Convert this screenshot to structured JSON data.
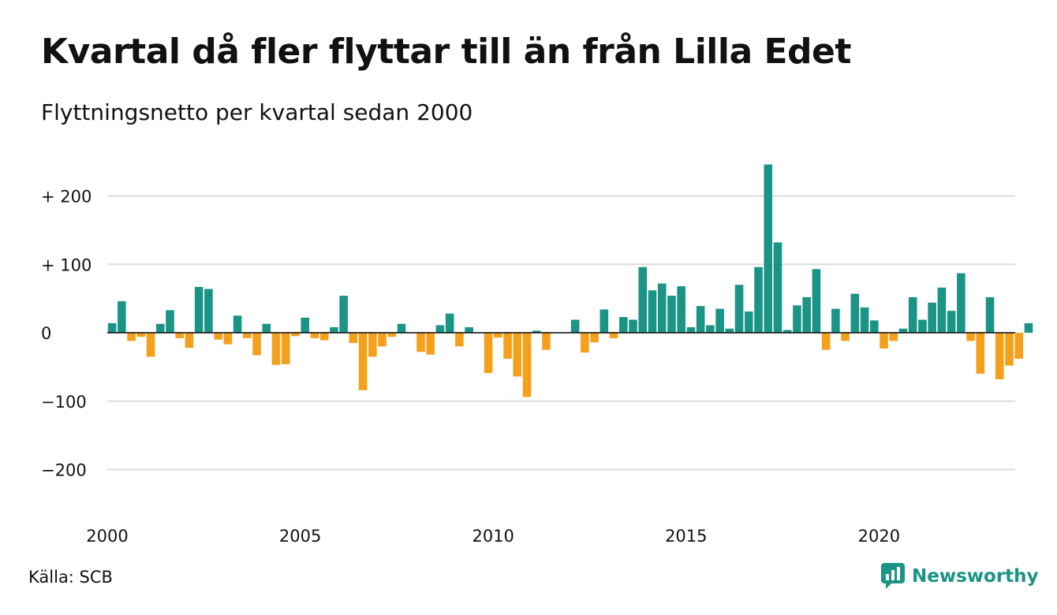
{
  "header": {
    "title": "Kvartal då fler flyttar till än från Lilla Edet",
    "subtitle": "Flyttningsnetto per kvartal sedan 2000"
  },
  "footer": {
    "source": "Källa: SCB",
    "brand": "Newsworthy",
    "brand_icon": "newsworthy-logo-icon",
    "brand_color": "#1a9485"
  },
  "chart_data": {
    "type": "bar",
    "title": "Kvartal då fler flyttar till än från Lilla Edet",
    "subtitle": "Flyttningsnetto per kvartal sedan 2000",
    "xlabel": "",
    "ylabel": "",
    "ylim": [
      -250,
      250
    ],
    "yticks": [
      {
        "value": 200,
        "label": "+ 200"
      },
      {
        "value": 100,
        "label": "+ 100"
      },
      {
        "value": 0,
        "label": "0"
      },
      {
        "value": -100,
        "label": "−100"
      },
      {
        "value": -200,
        "label": "−200"
      }
    ],
    "xticks": [
      {
        "year": 2000,
        "label": "2000"
      },
      {
        "year": 2005,
        "label": "2005"
      },
      {
        "year": 2010,
        "label": "2010"
      },
      {
        "year": 2015,
        "label": "2015"
      },
      {
        "year": 2020,
        "label": "2020"
      }
    ],
    "grid": true,
    "positive_color": "#1a9485",
    "negative_color": "#f5a01a",
    "series": [
      {
        "values": [
          14,
          46,
          -12,
          -6,
          -35,
          13,
          33,
          -8,
          -22,
          67,
          64,
          -10,
          -17,
          25,
          -8,
          -33,
          13,
          -47,
          -46,
          -5,
          22,
          -8,
          -11,
          8,
          54,
          -15,
          -84,
          -35,
          -20,
          -6,
          13,
          0,
          -28,
          -32,
          11,
          28,
          -20,
          8,
          0,
          -59,
          -7,
          -38,
          -64,
          -94,
          3,
          -25,
          0,
          0,
          19,
          -29,
          -14,
          34,
          -8,
          23,
          19,
          96,
          62,
          72,
          54,
          68,
          8,
          39,
          11,
          35,
          6,
          70,
          31,
          96,
          246,
          132,
          4,
          40,
          52,
          93,
          -25,
          35,
          -12,
          57,
          37,
          18,
          -23,
          -12,
          6,
          52,
          19,
          44,
          66,
          32,
          87,
          -12,
          -60,
          52,
          -68,
          -48,
          -38,
          14
        ]
      }
    ]
  }
}
